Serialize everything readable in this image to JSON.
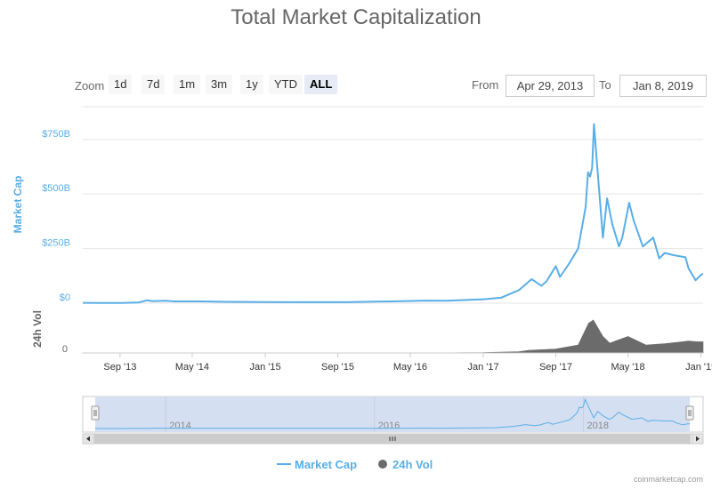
{
  "title": "Total Market Capitalization",
  "zoom": {
    "label": "Zoom",
    "buttons": [
      "1d",
      "7d",
      "1m",
      "3m",
      "1y",
      "YTD",
      "ALL"
    ],
    "active": "ALL"
  },
  "range": {
    "from_label": "From",
    "from_value": "Apr 29, 2013",
    "to_label": "To",
    "to_value": "Jan 8, 2019"
  },
  "colors": {
    "market_cap": "#5aaee6",
    "volume": "#6b6b6b",
    "navigator_fill": "#d5dff2"
  },
  "chart_data": {
    "type": "line",
    "series": [
      {
        "name": "Market Cap",
        "unit": "USD billions",
        "points": [
          [
            "2013-04-29",
            1.5
          ],
          [
            "2013-07-01",
            1.2
          ],
          [
            "2013-09-01",
            1.4
          ],
          [
            "2013-11-01",
            3
          ],
          [
            "2013-11-30",
            13
          ],
          [
            "2013-12-20",
            9
          ],
          [
            "2014-02-01",
            11
          ],
          [
            "2014-03-01",
            8
          ],
          [
            "2014-06-01",
            8
          ],
          [
            "2014-09-01",
            6
          ],
          [
            "2015-01-01",
            5
          ],
          [
            "2015-04-01",
            4.5
          ],
          [
            "2015-07-01",
            4.5
          ],
          [
            "2015-10-01",
            4.5
          ],
          [
            "2016-01-01",
            7
          ],
          [
            "2016-03-01",
            8
          ],
          [
            "2016-06-20",
            12
          ],
          [
            "2016-09-01",
            11
          ],
          [
            "2017-01-01",
            18
          ],
          [
            "2017-03-01",
            25
          ],
          [
            "2017-05-01",
            60
          ],
          [
            "2017-06-12",
            110
          ],
          [
            "2017-07-15",
            80
          ],
          [
            "2017-08-01",
            100
          ],
          [
            "2017-09-01",
            170
          ],
          [
            "2017-09-15",
            120
          ],
          [
            "2017-10-15",
            180
          ],
          [
            "2017-11-15",
            250
          ],
          [
            "2017-12-10",
            440
          ],
          [
            "2017-12-18",
            600
          ],
          [
            "2017-12-25",
            580
          ],
          [
            "2018-01-01",
            620
          ],
          [
            "2018-01-07",
            820
          ],
          [
            "2018-01-15",
            680
          ],
          [
            "2018-02-06",
            300
          ],
          [
            "2018-02-20",
            480
          ],
          [
            "2018-03-10",
            360
          ],
          [
            "2018-04-01",
            260
          ],
          [
            "2018-04-12",
            300
          ],
          [
            "2018-05-05",
            460
          ],
          [
            "2018-05-20",
            380
          ],
          [
            "2018-06-20",
            260
          ],
          [
            "2018-07-25",
            300
          ],
          [
            "2018-08-14",
            205
          ],
          [
            "2018-09-01",
            230
          ],
          [
            "2018-10-01",
            220
          ],
          [
            "2018-11-10",
            210
          ],
          [
            "2018-11-20",
            160
          ],
          [
            "2018-12-14",
            105
          ],
          [
            "2019-01-01",
            130
          ],
          [
            "2019-01-08",
            135
          ]
        ]
      },
      {
        "name": "24h Vol",
        "unit": "USD billions",
        "points": [
          [
            "2013-04-29",
            0.1
          ],
          [
            "2015-01-01",
            0.1
          ],
          [
            "2016-06-01",
            0.2
          ],
          [
            "2017-01-01",
            0.5
          ],
          [
            "2017-05-01",
            2
          ],
          [
            "2017-06-01",
            4
          ],
          [
            "2017-09-01",
            6
          ],
          [
            "2017-11-15",
            12
          ],
          [
            "2017-12-20",
            45
          ],
          [
            "2018-01-05",
            50
          ],
          [
            "2018-02-06",
            25
          ],
          [
            "2018-03-01",
            15
          ],
          [
            "2018-05-01",
            25
          ],
          [
            "2018-07-01",
            12
          ],
          [
            "2018-09-01",
            14
          ],
          [
            "2018-11-20",
            18
          ],
          [
            "2018-12-20",
            17
          ],
          [
            "2019-01-08",
            17
          ]
        ]
      }
    ],
    "y_axis": {
      "label": "Market Cap",
      "ticks": [
        {
          "value": 0,
          "label": "$0"
        },
        {
          "value": 250,
          "label": "$250B"
        },
        {
          "value": 500,
          "label": "$500B"
        },
        {
          "value": 750,
          "label": "$750B"
        }
      ],
      "range": [
        0,
        900
      ]
    },
    "y2_axis": {
      "label": "24h Vol",
      "ticks": [
        {
          "value": 0,
          "label": "0"
        }
      ],
      "range": [
        0,
        70
      ]
    },
    "x_axis": {
      "range": [
        "2013-04-29",
        "2019-01-08"
      ],
      "ticks": [
        {
          "date": "2013-09-01",
          "label": "Sep '13"
        },
        {
          "date": "2014-05-01",
          "label": "May '14"
        },
        {
          "date": "2015-01-01",
          "label": "Jan '15"
        },
        {
          "date": "2015-09-01",
          "label": "Sep '15"
        },
        {
          "date": "2016-05-01",
          "label": "May '16"
        },
        {
          "date": "2017-01-01",
          "label": "Jan '17"
        },
        {
          "date": "2017-09-01",
          "label": "Sep '17"
        },
        {
          "date": "2018-05-01",
          "label": "May '18"
        },
        {
          "date": "2019-01-01",
          "label": "Jan '19"
        }
      ]
    },
    "navigator": {
      "labels": [
        {
          "date": "2014-01-01",
          "label": "2014"
        },
        {
          "date": "2016-01-01",
          "label": "2016"
        },
        {
          "date": "2018-01-01",
          "label": "2018"
        }
      ]
    },
    "grid": true,
    "legend": {
      "placement": "bottom-center",
      "entries": [
        "Market Cap",
        "24h Vol"
      ]
    }
  },
  "credit": "coinmarketcap.com"
}
